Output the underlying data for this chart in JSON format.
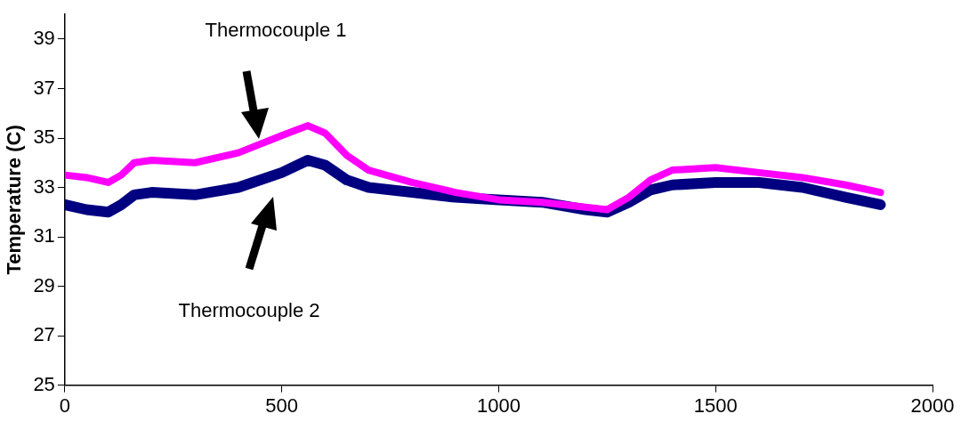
{
  "chart_data": {
    "type": "line",
    "ylabel": "Temperature (C)",
    "xlim": [
      0,
      2000
    ],
    "xticks": [
      0,
      500,
      1000,
      1500,
      2000
    ],
    "ylim": [
      25,
      40
    ],
    "yticks": [
      25,
      27,
      29,
      31,
      33,
      35,
      37,
      39
    ],
    "grid": false,
    "legend": false,
    "marker": "none",
    "line_style": "solid",
    "annotations": [
      "Thermocouple 1",
      "Thermocouple 2"
    ],
    "series": [
      {
        "color": "#ff00ff",
        "x": [
          0,
          50,
          100,
          130,
          160,
          200,
          300,
          400,
          500,
          560,
          600,
          650,
          700,
          800,
          900,
          1000,
          1100,
          1200,
          1250,
          1300,
          1350,
          1400,
          1500,
          1600,
          1700,
          1800,
          1880
        ],
        "values": [
          33.5,
          33.4,
          33.2,
          33.5,
          34.0,
          34.1,
          34.0,
          34.4,
          35.1,
          35.5,
          35.2,
          34.3,
          33.7,
          33.2,
          32.8,
          32.5,
          32.4,
          32.2,
          32.1,
          32.6,
          33.3,
          33.7,
          33.8,
          33.6,
          33.4,
          33.1,
          32.8
        ]
      },
      {
        "color": "#000080",
        "x": [
          0,
          50,
          100,
          130,
          160,
          200,
          300,
          400,
          500,
          560,
          600,
          650,
          700,
          800,
          900,
          1000,
          1100,
          1200,
          1250,
          1300,
          1350,
          1400,
          1500,
          1600,
          1700,
          1800,
          1880
        ],
        "values": [
          32.3,
          32.1,
          32.0,
          32.3,
          32.7,
          32.8,
          32.7,
          33.0,
          33.6,
          34.1,
          33.9,
          33.3,
          33.0,
          32.8,
          32.6,
          32.5,
          32.4,
          32.1,
          32.0,
          32.4,
          32.9,
          33.1,
          33.2,
          33.2,
          33.0,
          32.6,
          32.3
        ]
      }
    ]
  }
}
